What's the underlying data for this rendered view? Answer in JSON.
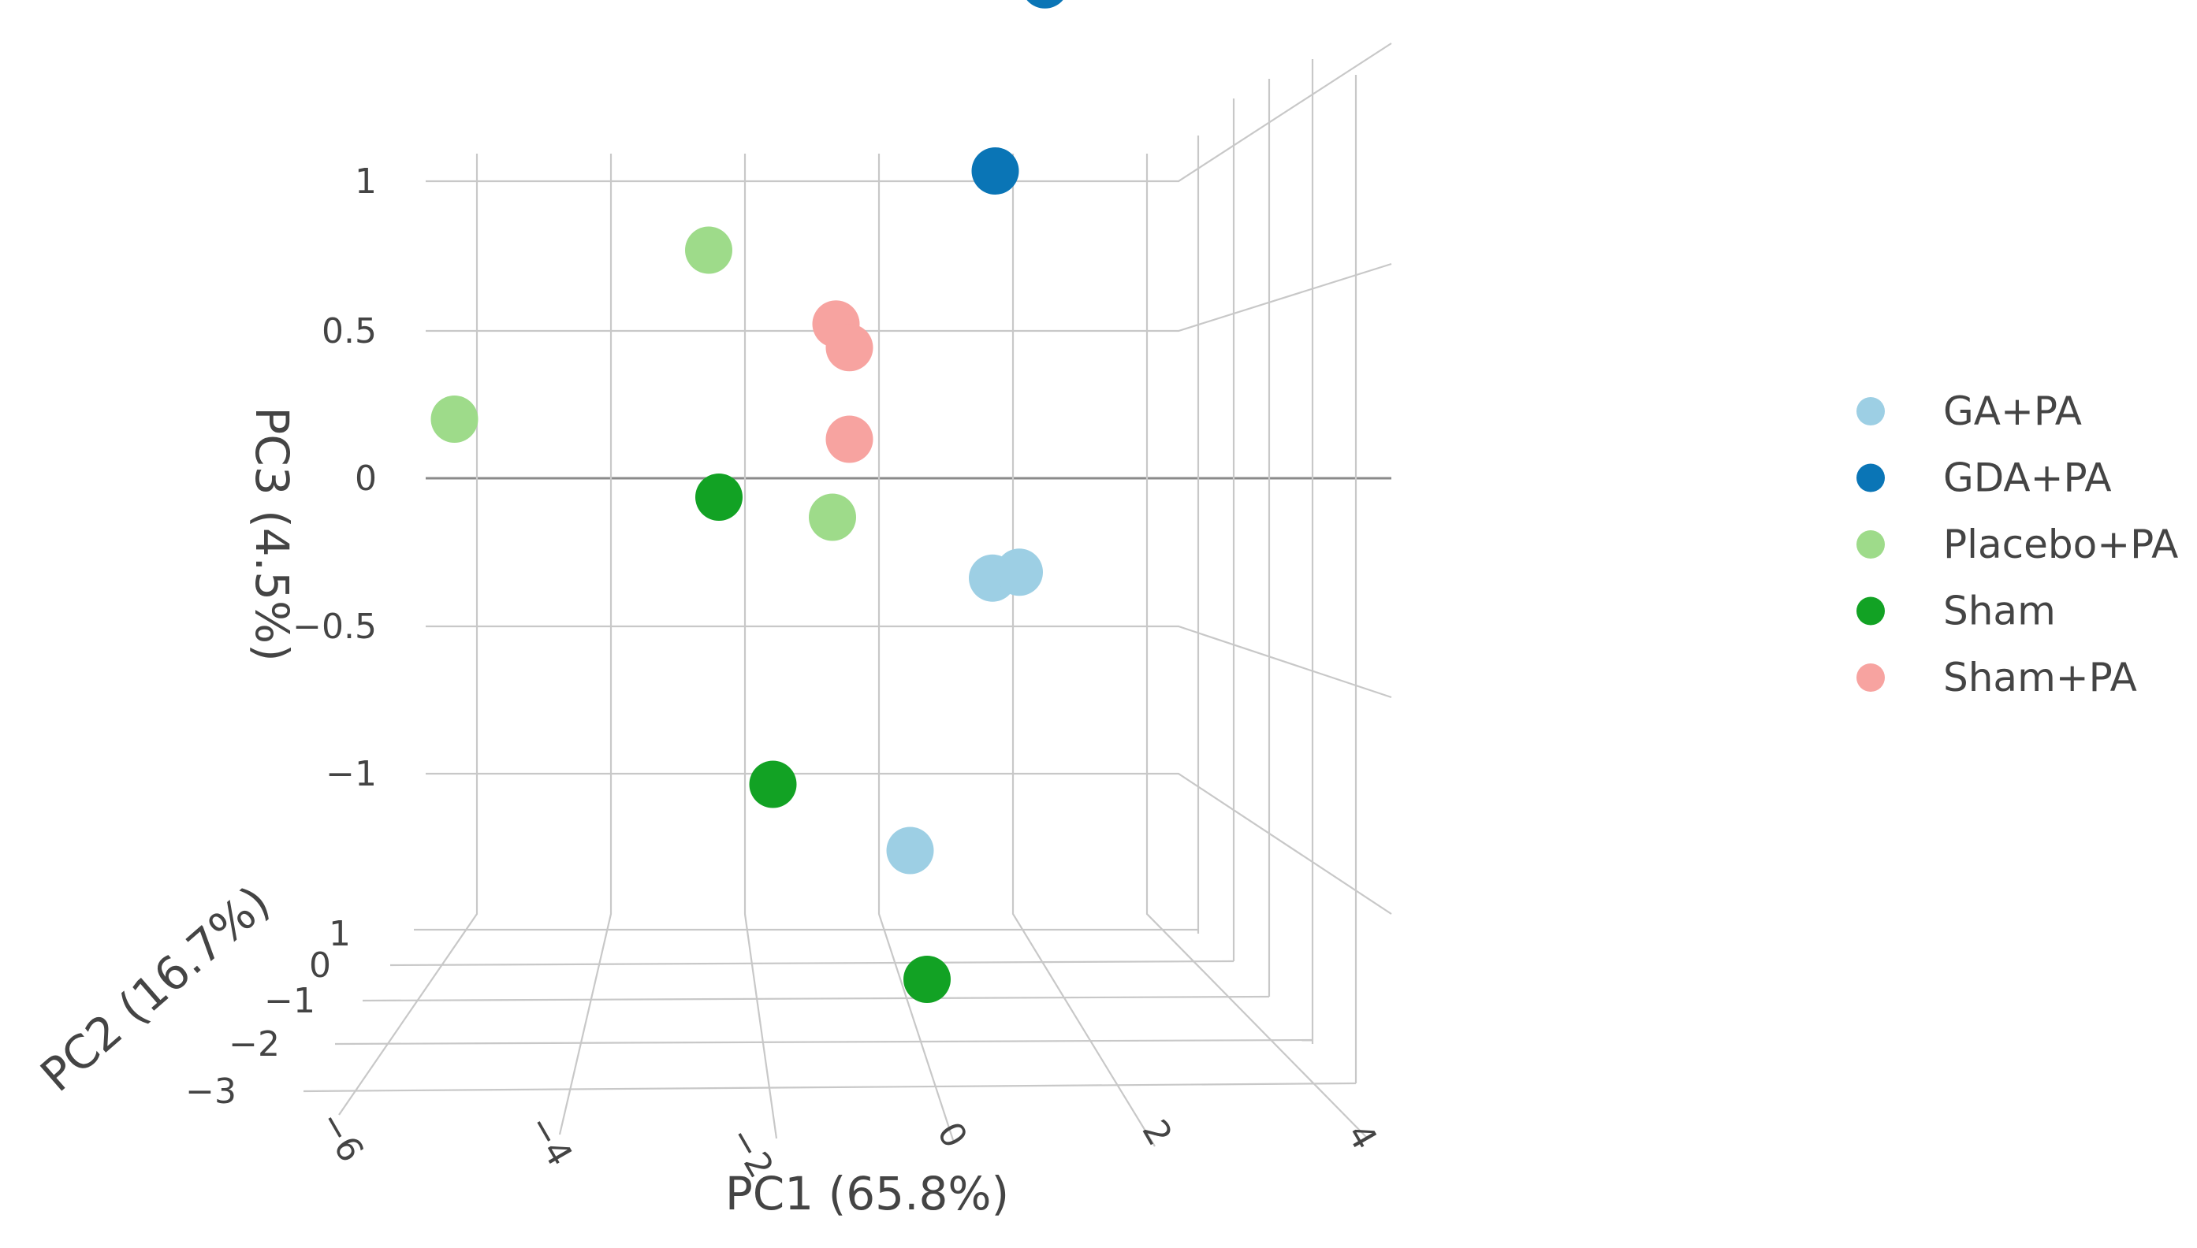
{
  "chart_data": {
    "type": "scatter",
    "projection": "3d",
    "axes": {
      "x": {
        "label": "PC1 (65.8%)",
        "ticks": [
          "−6",
          "−4",
          "−2",
          "0",
          "2",
          "4"
        ]
      },
      "y": {
        "label": "PC2 (16.7%)",
        "ticks": [
          "−3",
          "−2",
          "−1",
          "0",
          "1"
        ]
      },
      "z": {
        "label": "PC3 (4.5%)",
        "ticks": [
          "−1",
          "−0.5",
          "0",
          "0.5",
          "1"
        ],
        "range": [
          -1.2,
          1.1
        ]
      }
    },
    "grid": true,
    "legend_position": "right",
    "series": [
      {
        "name": "GA+PA",
        "color": "#9dcfe4",
        "points": [
          {
            "pc1": 1.8,
            "pc2": -0.2,
            "pc3": -0.37
          },
          {
            "pc1": 2.2,
            "pc2": -0.2,
            "pc3": -0.35
          },
          {
            "pc1": 0.2,
            "pc2": 0.5,
            "pc3": -1.18
          }
        ]
      },
      {
        "name": "GDA+PA",
        "color": "#0a75b6",
        "points": [
          {
            "pc1": 2.0,
            "pc2": -0.5,
            "pc3": 0.96
          },
          {
            "pc1": 3.8,
            "pc2": -2.5,
            "pc3": 1.27
          }
        ]
      },
      {
        "name": "Placebo+PA",
        "color": "#9edb8a",
        "points": [
          {
            "pc1": -2.7,
            "pc2": 0.3,
            "pc3": 0.82
          },
          {
            "pc1": -6.6,
            "pc2": 0.5,
            "pc3": 0.28
          },
          {
            "pc1": -0.8,
            "pc2": 0.2,
            "pc3": -0.1
          }
        ]
      },
      {
        "name": "Sham",
        "color": "#12a224",
        "points": [
          {
            "pc1": -2.6,
            "pc2": 0.4,
            "pc3": 0.0
          },
          {
            "pc1": -1.9,
            "pc2": 0.6,
            "pc3": -0.94
          },
          {
            "pc1": 0.4,
            "pc2": 0.6,
            "pc3": -1.6
          }
        ]
      },
      {
        "name": "Sham+PA",
        "color": "#f7a3a0",
        "points": [
          {
            "pc1": -0.8,
            "pc2": 0.3,
            "pc3": 0.57
          },
          {
            "pc1": -0.6,
            "pc2": 0.3,
            "pc3": 0.49
          },
          {
            "pc1": -0.6,
            "pc2": 0.3,
            "pc3": 0.18
          }
        ]
      }
    ]
  }
}
